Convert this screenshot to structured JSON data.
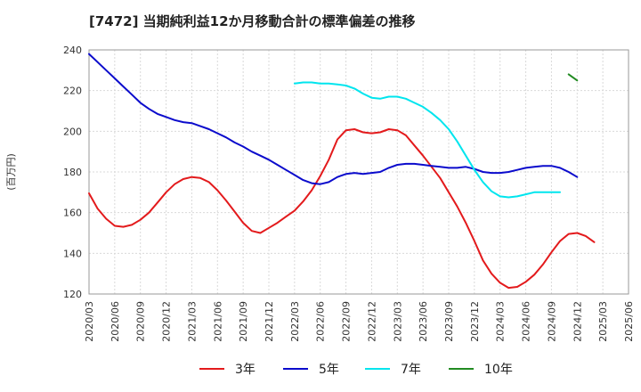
{
  "chart_data": {
    "type": "line",
    "title": "[7472]  当期純利益12か月移動合計の標準偏差の推移",
    "ylabel": "(百万円)",
    "xlabel": "",
    "ylim": [
      120,
      240
    ],
    "yticks": [
      120,
      140,
      160,
      180,
      200,
      220,
      240
    ],
    "grid": true,
    "legend_position": "bottom",
    "x_tick_labels": [
      "2020/03",
      "2020/06",
      "2020/09",
      "2020/12",
      "2021/03",
      "2021/06",
      "2021/09",
      "2021/12",
      "2022/03",
      "2022/06",
      "2022/09",
      "2022/12",
      "2023/03",
      "2023/06",
      "2023/09",
      "2023/12",
      "2024/03",
      "2024/06",
      "2024/09",
      "2024/12",
      "2025/03",
      "2025/06"
    ],
    "x_start": "2020/03",
    "series": [
      {
        "name": "3年",
        "color": "#e31a1c",
        "start_index": 0,
        "values": [
          169.5,
          162,
          157,
          153.5,
          153,
          154,
          156.5,
          160,
          165,
          170,
          174,
          176.5,
          177.5,
          177,
          175,
          171,
          166,
          160.5,
          155,
          151,
          150,
          152.5,
          155,
          158,
          161,
          165.5,
          171,
          178,
          186,
          196,
          200.5,
          201,
          199.5,
          199,
          199.5,
          201,
          200.5,
          198,
          193,
          188,
          182.5,
          177,
          170,
          163,
          155,
          146,
          136.5,
          130,
          125.5,
          123,
          123.5,
          126,
          129.5,
          134.5,
          140.5,
          146,
          149.5,
          150,
          148.5,
          145.5
        ]
      },
      {
        "name": "5年",
        "color": "#0b0bcc",
        "start_index": 0,
        "values": [
          238,
          234,
          230,
          226,
          222,
          218,
          214,
          211,
          208.5,
          207,
          205.5,
          204.5,
          204,
          202.5,
          201,
          199,
          197,
          194.5,
          192.5,
          190,
          188,
          186,
          183.5,
          181,
          178.5,
          176,
          174.5,
          174,
          175,
          177.5,
          179,
          179.5,
          179,
          179.5,
          180,
          182,
          183.5,
          184,
          184,
          183.5,
          183,
          182.5,
          182,
          182,
          182.5,
          181.5,
          180,
          179.5,
          179.5,
          180,
          181,
          182,
          182.5,
          183,
          183,
          182,
          180,
          177.5
        ]
      },
      {
        "name": "7年",
        "color": "#00e5ee",
        "start_index": 24,
        "values": [
          223.5,
          224,
          224,
          223.5,
          223.5,
          223,
          222.5,
          221,
          218.5,
          216.5,
          216,
          217,
          217,
          216,
          214,
          212,
          209,
          205.5,
          201,
          195,
          188,
          181,
          175,
          170.5,
          168,
          167.5,
          168,
          169,
          170,
          170,
          170,
          170
        ]
      },
      {
        "name": "10年",
        "color": "#228b22",
        "start_index": 56,
        "values": [
          228,
          225
        ]
      }
    ]
  }
}
